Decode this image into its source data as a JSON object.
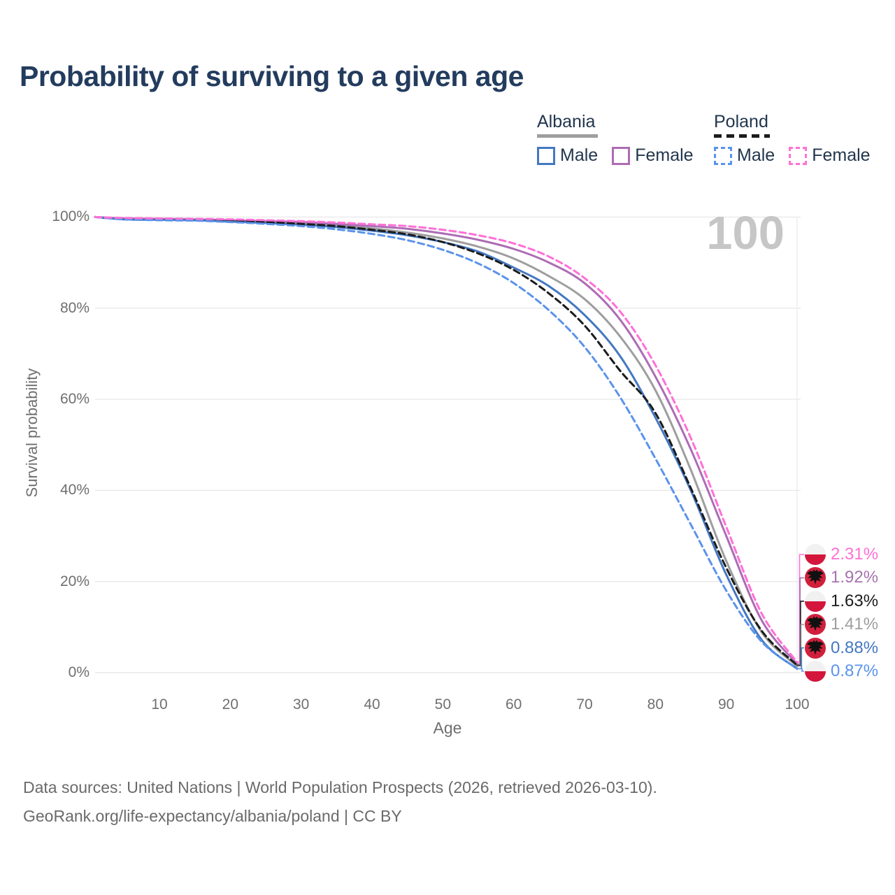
{
  "title": {
    "text": "Probability of surviving to a given age",
    "color": "#233c5e"
  },
  "watermark": {
    "text": "100",
    "color": "#c6c6c6"
  },
  "legend": {
    "albania": {
      "title": "Albania",
      "male": "Male",
      "female": "Female"
    },
    "poland": {
      "title": "Poland",
      "male": "Male",
      "female": "Female"
    },
    "text_color": "#22364e",
    "position": "top-right"
  },
  "axes": {
    "y_title": "Survival probability",
    "x_title": "Age",
    "y_ticks": [
      {
        "label": "100%",
        "value": 100
      },
      {
        "label": "80%",
        "value": 80
      },
      {
        "label": "60%",
        "value": 60
      },
      {
        "label": "40%",
        "value": 40
      },
      {
        "label": "20%",
        "value": 20
      },
      {
        "label": "0%",
        "value": 0
      }
    ],
    "x_ticks": [
      {
        "label": "10",
        "value": 10
      },
      {
        "label": "20",
        "value": 20
      },
      {
        "label": "30",
        "value": 30
      },
      {
        "label": "40",
        "value": 40
      },
      {
        "label": "50",
        "value": 50
      },
      {
        "label": "60",
        "value": 60
      },
      {
        "label": "70",
        "value": 70
      },
      {
        "label": "80",
        "value": 80
      },
      {
        "label": "90",
        "value": 90
      },
      {
        "label": "100",
        "value": 100
      }
    ],
    "text_color": "#6f6f6f",
    "grid_color": "#e9e9e9"
  },
  "chart_data": {
    "type": "line",
    "title": "Probability of surviving to a given age",
    "xlabel": "Age",
    "ylabel": "Survival probability",
    "xlim": [
      0,
      100
    ],
    "ylim": [
      0,
      100
    ],
    "grid": "horizontal",
    "legend_position": "top-right",
    "current_age_indicator": 100,
    "x": [
      0,
      5,
      10,
      15,
      20,
      25,
      30,
      35,
      40,
      45,
      50,
      55,
      60,
      65,
      70,
      75,
      80,
      85,
      90,
      95,
      100
    ],
    "series": [
      {
        "name": "Poland Female",
        "country": "Poland",
        "sex": "Female",
        "color": "#ff70d6",
        "dashed": true,
        "end_label": "2.31%",
        "values": [
          100,
          99.8,
          99.7,
          99.6,
          99.5,
          99.3,
          99.1,
          98.8,
          98.4,
          98.0,
          97.2,
          96.0,
          94.2,
          91.3,
          86.6,
          79.3,
          67.5,
          51.5,
          32.0,
          13.0,
          2.31
        ]
      },
      {
        "name": "Albania Female",
        "country": "Albania",
        "sex": "Female",
        "color": "#ad6cb4",
        "dashed": false,
        "end_label": "1.92%",
        "values": [
          100,
          99.7,
          99.6,
          99.5,
          99.3,
          99.1,
          98.9,
          98.5,
          98.0,
          97.4,
          96.4,
          95.0,
          93.0,
          90.0,
          85.5,
          77.5,
          65.0,
          49.0,
          30.0,
          11.5,
          1.92
        ]
      },
      {
        "name": "Poland (both sexes)",
        "country": "Poland",
        "sex": "Both",
        "color": "#1c1c1c",
        "dashed": true,
        "end_label": "1.63%",
        "values": [
          100,
          99.6,
          99.5,
          99.4,
          99.2,
          98.9,
          98.5,
          98.0,
          97.2,
          96.2,
          94.5,
          92.0,
          88.4,
          83.2,
          76.2,
          66.3,
          57.0,
          40.5,
          23.0,
          9.2,
          1.63
        ]
      },
      {
        "name": "Albania (both sexes)",
        "country": "Albania",
        "sex": "Both",
        "color": "#9e9e9e",
        "dashed": false,
        "end_label": "1.41%",
        "values": [
          100,
          99.6,
          99.5,
          99.4,
          99.2,
          98.9,
          98.6,
          98.1,
          97.5,
          96.6,
          95.3,
          93.5,
          90.9,
          87.0,
          82.0,
          73.8,
          62.0,
          44.5,
          24.5,
          8.9,
          1.41
        ]
      },
      {
        "name": "Albania Male",
        "country": "Albania",
        "sex": "Male",
        "color": "#4478c2",
        "dashed": false,
        "end_label": "0.88%",
        "values": [
          100,
          99.5,
          99.4,
          99.3,
          99.0,
          98.7,
          98.3,
          97.8,
          97.0,
          96.0,
          94.5,
          92.4,
          88.9,
          84.8,
          78.5,
          69.5,
          56.0,
          40.0,
          21.5,
          7.2,
          0.88
        ]
      },
      {
        "name": "Poland Male",
        "country": "Poland",
        "sex": "Male",
        "color": "#5b93ec",
        "dashed": true,
        "end_label": "0.87%",
        "values": [
          100,
          99.5,
          99.3,
          99.2,
          98.9,
          98.5,
          98.0,
          97.3,
          96.3,
          94.9,
          92.8,
          89.8,
          85.5,
          79.5,
          71.5,
          60.5,
          47.0,
          32.5,
          18.0,
          6.8,
          0.87
        ]
      }
    ]
  },
  "end_labels": [
    {
      "text": "2.31%",
      "series": "Poland Female",
      "flag": "poland",
      "color": "#ff70d6"
    },
    {
      "text": "1.92%",
      "series": "Albania Female",
      "flag": "albania",
      "color": "#a872b0"
    },
    {
      "text": "1.63%",
      "series": "Poland (both sexes)",
      "flag": "poland",
      "color": "#1c1c1c"
    },
    {
      "text": "1.41%",
      "series": "Albania (both sexes)",
      "flag": "albania",
      "color": "#9e9e9e"
    },
    {
      "text": "0.88%",
      "series": "Albania Male",
      "flag": "albania",
      "color": "#4478c2"
    },
    {
      "text": "0.87%",
      "series": "Poland Male",
      "flag": "poland",
      "color": "#5b93ec"
    }
  ],
  "flags": {
    "albania_red": "#d0203c",
    "eagle_black": "#111111",
    "poland_red": "#d4163c",
    "poland_white": "#f1f1f1"
  },
  "footer": {
    "line1": "Data sources: United Nations | World Population Prospects (2026, retrieved 2026-03-10).",
    "line2": "GeoRank.org/life-expectancy/albania/poland | CC BY",
    "color": "#6a6a6a"
  }
}
